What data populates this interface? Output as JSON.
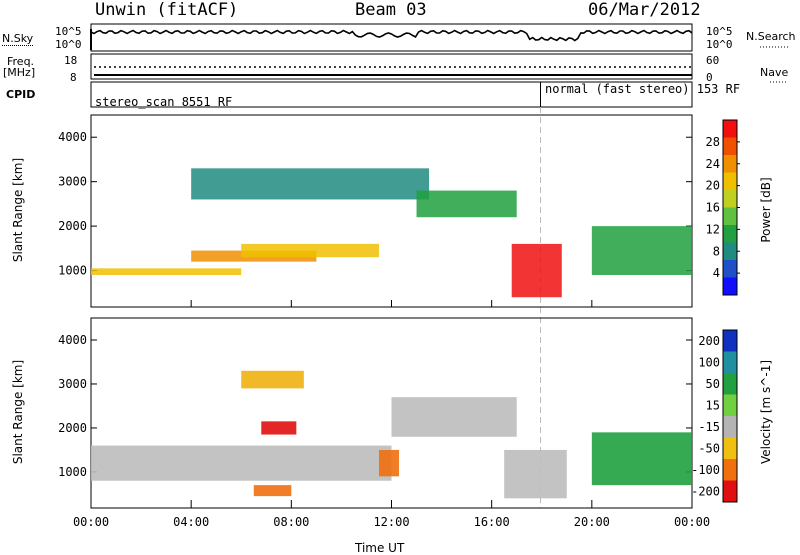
{
  "header": {
    "title": "Unwin (fitACF)",
    "beam": "Beam 03",
    "date": "06/Mar/2012"
  },
  "panels": {
    "nsky": {
      "label": "N.Sky",
      "ticks": [
        "10^5",
        "10^0"
      ]
    },
    "nsearch": {
      "label": "N.Search",
      "ticks": [
        "10^5",
        "10^0"
      ]
    },
    "freq": {
      "label_line1": "Freq.",
      "label_line2": "[MHz]",
      "ticks": [
        "18",
        "8"
      ]
    },
    "nave": {
      "label": "Nave",
      "ticks": [
        "60",
        "0"
      ]
    },
    "cpid": {
      "label": "CPID",
      "segments": [
        {
          "text": "stereo_scan 8551 RF"
        },
        {
          "text": "normal (fast stereo) 153 RF"
        }
      ]
    }
  },
  "axes": {
    "xlabel": "Time UT",
    "xticks": [
      "00:00",
      "04:00",
      "08:00",
      "12:00",
      "16:00",
      "20:00",
      "00:00"
    ],
    "ylabel": "Slant Range [km]",
    "yticks": [
      "1000",
      "2000",
      "3000",
      "4000"
    ]
  },
  "colorbars": {
    "power": {
      "label": "Power [dB]",
      "ticks": [
        "4",
        "8",
        "12",
        "16",
        "20",
        "24",
        "28"
      ],
      "colors": [
        "#1010ff",
        "#2050c8",
        "#208c80",
        "#20a040",
        "#60c040",
        "#c0d020",
        "#f0c000",
        "#f09000",
        "#f05000",
        "#f01010"
      ]
    },
    "velocity": {
      "label": "Velocity [m s^-1]",
      "ticks": [
        "200",
        "100",
        "50",
        "15",
        "-15",
        "-50",
        "-100",
        "-200"
      ],
      "colors": [
        "#1030c0",
        "#2090a0",
        "#20a040",
        "#70d040",
        "#b4b4b4",
        "#f0c010",
        "#f07010",
        "#e01010"
      ]
    }
  },
  "chart_data": [
    {
      "type": "heatmap",
      "title": "Power",
      "xlabel": "Time UT",
      "ylabel": "Slant Range [km]",
      "x_range_hours": [
        0,
        24
      ],
      "ylim": [
        180,
        4500
      ],
      "colorbar": {
        "label": "Power [dB]",
        "range": [
          0,
          32
        ]
      },
      "features": [
        {
          "t_start": 0.0,
          "t_end": 6.0,
          "range_start": 900,
          "range_end": 1050,
          "power_db": 20
        },
        {
          "t_start": 4.0,
          "t_end": 9.0,
          "range_start": 1200,
          "range_end": 1450,
          "power_db": 24
        },
        {
          "t_start": 6.0,
          "t_end": 11.5,
          "range_start": 1300,
          "range_end": 1600,
          "power_db": 22
        },
        {
          "t_start": 4.0,
          "t_end": 13.5,
          "range_start": 2600,
          "range_end": 3300,
          "power_db": 8
        },
        {
          "t_start": 13.0,
          "t_end": 17.0,
          "range_start": 2200,
          "range_end": 2800,
          "power_db": 12
        },
        {
          "t_start": 16.8,
          "t_end": 18.8,
          "range_start": 400,
          "range_end": 1600,
          "power_db": 30
        },
        {
          "t_start": 20.0,
          "t_end": 24.0,
          "range_start": 900,
          "range_end": 2000,
          "power_db": 10
        }
      ]
    },
    {
      "type": "heatmap",
      "title": "Velocity",
      "xlabel": "Time UT",
      "ylabel": "Slant Range [km]",
      "x_range_hours": [
        0,
        24
      ],
      "ylim": [
        180,
        4500
      ],
      "colorbar": {
        "label": "Velocity [m s^-1]",
        "range": [
          -250,
          250
        ]
      },
      "features": [
        {
          "t_start": 0.0,
          "t_end": 12.0,
          "range_start": 800,
          "range_end": 1600,
          "velocity": -5
        },
        {
          "t_start": 6.8,
          "t_end": 8.2,
          "range_start": 1850,
          "range_end": 2150,
          "velocity": -200
        },
        {
          "t_start": 6.5,
          "t_end": 8.0,
          "range_start": 450,
          "range_end": 700,
          "velocity": -90
        },
        {
          "t_start": 11.5,
          "t_end": 12.3,
          "range_start": 900,
          "range_end": 1500,
          "velocity": -80
        },
        {
          "t_start": 6.0,
          "t_end": 8.5,
          "range_start": 2900,
          "range_end": 3300,
          "velocity": -40
        },
        {
          "t_start": 12.0,
          "t_end": 17.0,
          "range_start": 1800,
          "range_end": 2700,
          "velocity": -5
        },
        {
          "t_start": 16.5,
          "t_end": 19.0,
          "range_start": 400,
          "range_end": 1500,
          "velocity": 0
        },
        {
          "t_start": 20.0,
          "t_end": 24.0,
          "range_start": 700,
          "range_end": 1900,
          "velocity": 30
        }
      ]
    }
  ]
}
